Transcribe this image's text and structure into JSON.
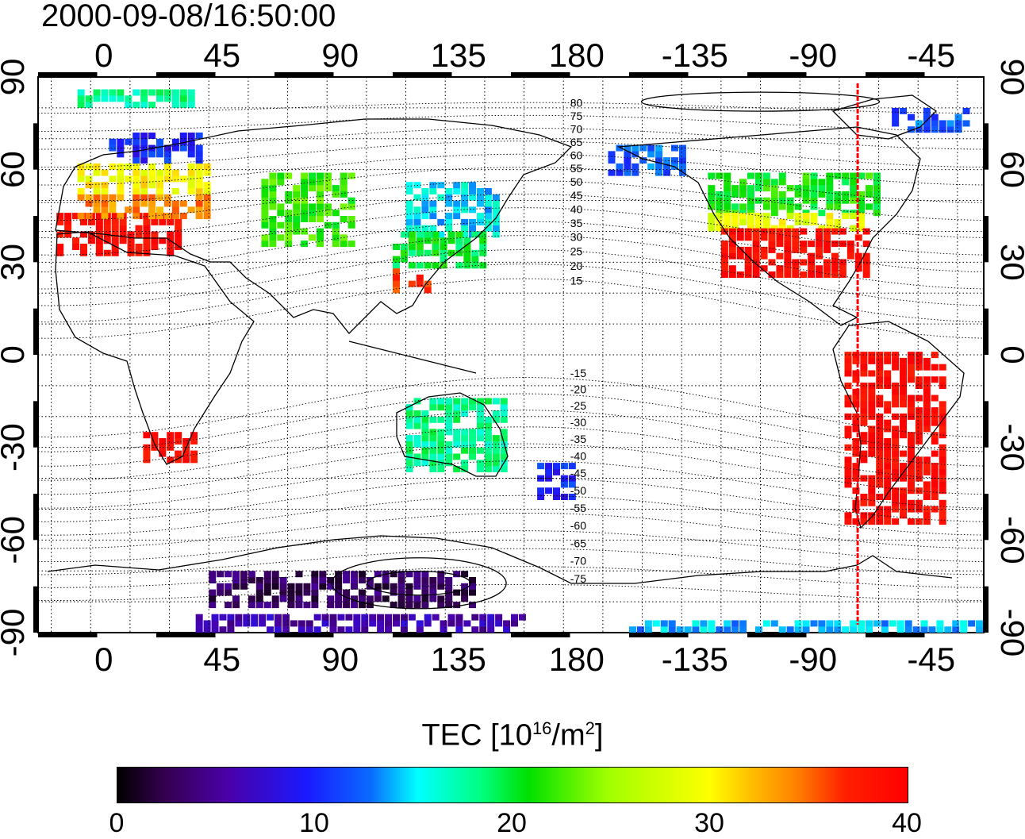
{
  "timestamp": "2000-09-08/16:50:00",
  "top_x_labels": [
    "0",
    "45",
    "90",
    "135",
    "180",
    "-135",
    "-90",
    "-45"
  ],
  "bottom_x_labels": [
    "0",
    "45",
    "90",
    "135",
    "180",
    "-135",
    "-90",
    "-45"
  ],
  "left_y_labels": [
    "90",
    "60",
    "30",
    "0",
    "-30",
    "-60",
    "-90"
  ],
  "right_y_labels": [
    "90",
    "60",
    "30",
    "0",
    "-30",
    "-60",
    "-90"
  ],
  "x_tick_lons": [
    0,
    45,
    90,
    135,
    180,
    225,
    270,
    315
  ],
  "y_tick_lats": [
    90,
    60,
    30,
    0,
    -30,
    -60,
    -90
  ],
  "contour_labels": [
    "80",
    "75",
    "70",
    "65",
    "60",
    "55",
    "50",
    "45",
    "40",
    "35",
    "30",
    "25",
    "20",
    "15",
    "-15",
    "-20",
    "-25",
    "-30",
    "-35",
    "-40",
    "-45",
    "-50",
    "-55",
    "-60",
    "-65",
    "-70",
    "-75"
  ],
  "contour_label_lats": [
    80,
    75,
    70,
    65,
    60,
    55,
    50,
    45,
    40,
    35,
    30,
    25,
    20,
    15,
    -15,
    -20,
    -25,
    -30,
    -35,
    -40,
    -45,
    -50,
    -55,
    -60,
    -65,
    -70,
    -75
  ],
  "terminator_lon": -73,
  "terminator_color": "#ff0000",
  "colorbar": {
    "title": "TEC  [10^16/m^2]",
    "title_base": "TEC  [10",
    "title_exp1": "16",
    "title_mid": "/m",
    "title_exp2": "2",
    "title_end": "]",
    "min": 0,
    "max": 40,
    "ticks": [
      "0",
      "10",
      "20",
      "30",
      "40"
    ],
    "tick_values": [
      0,
      10,
      20,
      30,
      40
    ]
  },
  "tec_patches": [
    {
      "region": "europe-south",
      "lon": [
        -18,
        30
      ],
      "lat": [
        32,
        46
      ],
      "tec": 39
    },
    {
      "region": "europe-central",
      "lon": [
        -10,
        40
      ],
      "lat": [
        44,
        52
      ],
      "tec": 34
    },
    {
      "region": "europe-north",
      "lon": [
        -10,
        40
      ],
      "lat": [
        52,
        62
      ],
      "tec": 30
    },
    {
      "region": "scandinavia",
      "lon": [
        2,
        38
      ],
      "lat": [
        62,
        72
      ],
      "tec": 10
    },
    {
      "region": "russia-west",
      "lon": [
        60,
        95
      ],
      "lat": [
        35,
        58
      ],
      "tec": 22
    },
    {
      "region": "east-asia-north",
      "lon": [
        115,
        150
      ],
      "lat": [
        38,
        55
      ],
      "tec": 15
    },
    {
      "region": "east-asia-central",
      "lon": [
        110,
        145
      ],
      "lat": [
        28,
        40
      ],
      "tec": 20
    },
    {
      "region": "south-china",
      "lon": [
        110,
        125
      ],
      "lat": [
        20,
        28
      ],
      "tec": 37
    },
    {
      "region": "north-america-north",
      "lon": [
        -130,
        -65
      ],
      "lat": [
        45,
        58
      ],
      "tec": 21
    },
    {
      "region": "north-america-mid",
      "lon": [
        -130,
        -70
      ],
      "lat": [
        40,
        45
      ],
      "tec": 29
    },
    {
      "region": "north-america-south",
      "lon": [
        -125,
        -70
      ],
      "lat": [
        25,
        40
      ],
      "tec": 39
    },
    {
      "region": "alaska",
      "lon": [
        -168,
        -140
      ],
      "lat": [
        58,
        68
      ],
      "tec": 12
    },
    {
      "region": "south-america",
      "lon": [
        -78,
        -40
      ],
      "lat": [
        -55,
        0
      ],
      "tec": 39
    },
    {
      "region": "south-africa",
      "lon": [
        15,
        35
      ],
      "lat": [
        -35,
        -25
      ],
      "tec": 39
    },
    {
      "region": "australia",
      "lon": [
        115,
        153
      ],
      "lat": [
        -38,
        -15
      ],
      "tec": 18
    },
    {
      "region": "new-zealand",
      "lon": [
        165,
        180
      ],
      "lat": [
        -47,
        -35
      ],
      "tec": 10
    },
    {
      "region": "antarctica-east",
      "lon": [
        40,
        140
      ],
      "lat": [
        -82,
        -70
      ],
      "tec": 3
    },
    {
      "region": "antarctic-band-east",
      "lon": [
        35,
        160
      ],
      "lat": [
        -90,
        -85
      ],
      "tec": 6
    },
    {
      "region": "antarctic-band-west",
      "lon": [
        -160,
        -25
      ],
      "lat": [
        -90,
        -86
      ],
      "tec": 14
    },
    {
      "region": "greenland-coast",
      "lon": [
        -60,
        -30
      ],
      "lat": [
        72,
        80
      ],
      "tec": 12
    },
    {
      "region": "arctic-europe",
      "lon": [
        -10,
        35
      ],
      "lat": [
        80,
        85
      ],
      "tec": 18
    }
  ]
}
